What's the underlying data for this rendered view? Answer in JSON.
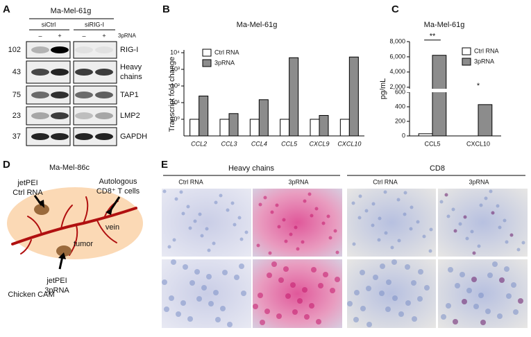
{
  "panel_labels": [
    "A",
    "B",
    "C",
    "D",
    "E"
  ],
  "panel_a": {
    "title": "Ma-Mel-61g",
    "groups": [
      "siCtrl",
      "siRIG-I"
    ],
    "lanes": [
      "–",
      "+",
      "–",
      "+"
    ],
    "treatment": "3pRNA",
    "rows": [
      {
        "mw": "102",
        "label": [
          "RIG-I"
        ]
      },
      {
        "mw": "43",
        "label": [
          "Heavy",
          "chains"
        ]
      },
      {
        "mw": "75",
        "label": [
          "TAP1"
        ]
      },
      {
        "mw": "23",
        "label": [
          "LMP2"
        ]
      },
      {
        "mw": "37",
        "label": [
          "GAPDH"
        ]
      }
    ]
  },
  "chart_data": [
    {
      "type": "bar",
      "title": "Ma-Mel-61g",
      "y_label": "Transcript fold change",
      "categories": [
        "CCL2",
        "CCL3",
        "CCL4",
        "CCL5",
        "CXCL9",
        "CXCL10"
      ],
      "series": [
        {
          "name": "Ctrl RNA",
          "color": "#ffffff",
          "values": [
            1,
            1,
            1,
            1,
            1,
            1
          ]
        },
        {
          "name": "3pRNA",
          "color": "#8c8c8c",
          "values": [
            25,
            2.2,
            15,
            5000,
            1.7,
            5500
          ]
        }
      ],
      "log_scale": true,
      "ylim": [
        0.1,
        10000
      ],
      "yticks": [
        {
          "value": 1,
          "label": "10⁰"
        },
        {
          "value": 10,
          "label": "10¹"
        },
        {
          "value": 100,
          "label": "10²"
        },
        {
          "value": 1000,
          "label": "10³"
        },
        {
          "value": 10000,
          "label": "10⁴"
        }
      ]
    },
    {
      "type": "bar",
      "title": "Ma-Mel-61g",
      "y_label": "pg/mL",
      "categories": [
        "CCL5",
        "CXCL10"
      ],
      "series": [
        {
          "name": "Ctrl RNA",
          "color": "#ffffff",
          "values": [
            30,
            0
          ]
        },
        {
          "name": "3pRNA",
          "color": "#8c8c8c",
          "values": [
            6200,
            430
          ]
        }
      ],
      "ylim": [
        0,
        8000
      ],
      "axis_break": [
        600,
        1800
      ],
      "yticks": [
        0,
        200,
        400,
        600,
        {
          "value": 2000,
          "label": "2,000"
        },
        {
          "value": 4000,
          "label": "4,000"
        },
        {
          "value": 6000,
          "label": "6,000"
        },
        {
          "value": 8000,
          "label": "8,000"
        }
      ],
      "annotations": [
        "**",
        "*"
      ]
    }
  ],
  "panel_d": {
    "title": "Ma-Mel-86c",
    "ctrl_label": [
      "jetPEI",
      "Ctrl RNA"
    ],
    "cells_label": [
      "Autologous",
      "CD8⁺ T cells"
    ],
    "vein": "vein",
    "tumor": "tumor",
    "cam": "Chicken CAM",
    "treat_label": [
      "jetPEI",
      "3pRNA"
    ]
  },
  "panel_e": {
    "groups": [
      "Heavy chains",
      "CD8"
    ],
    "columns": [
      "Ctrl RNA",
      "3pRNA",
      "Ctrl RNA",
      "3pRNA"
    ]
  }
}
